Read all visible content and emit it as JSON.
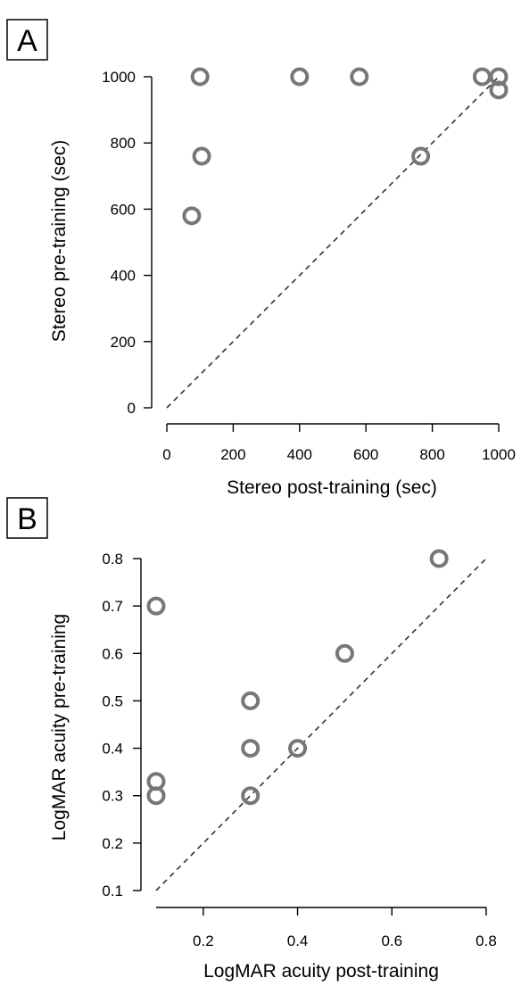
{
  "chart_data": [
    {
      "type": "scatter",
      "panel": "A",
      "xlabel": "Stereo post-training (sec)",
      "ylabel": "Stereo pre-training (sec)",
      "xlim": [
        0,
        1000
      ],
      "ylim": [
        0,
        1000
      ],
      "xticks": [
        "0",
        "200",
        "400",
        "600",
        "800",
        "1000"
      ],
      "yticks": [
        "0",
        "200",
        "400",
        "600",
        "800",
        "1000"
      ],
      "reference_line": "identity (y = x), dashed",
      "marker_color": "#777777",
      "points": [
        {
          "x": 100,
          "y": 1000
        },
        {
          "x": 400,
          "y": 1000
        },
        {
          "x": 580,
          "y": 1000
        },
        {
          "x": 950,
          "y": 1000
        },
        {
          "x": 1000,
          "y": 1000
        },
        {
          "x": 1000,
          "y": 960
        },
        {
          "x": 105,
          "y": 760
        },
        {
          "x": 765,
          "y": 760
        },
        {
          "x": 75,
          "y": 580
        }
      ]
    },
    {
      "type": "scatter",
      "panel": "B",
      "xlabel": "LogMAR acuity post-training",
      "ylabel": "LogMAR acuity pre-training",
      "xlim": [
        0.1,
        0.8
      ],
      "ylim": [
        0.1,
        0.8
      ],
      "xticks": [
        "0.2",
        "0.4",
        "0.6",
        "0.8"
      ],
      "yticks": [
        "0.1",
        "0.2",
        "0.3",
        "0.4",
        "0.5",
        "0.6",
        "0.7",
        "0.8"
      ],
      "reference_line": "identity (y = x), dashed",
      "marker_color": "#777777",
      "points": [
        {
          "x": 0.7,
          "y": 0.8
        },
        {
          "x": 0.1,
          "y": 0.7
        },
        {
          "x": 0.5,
          "y": 0.6
        },
        {
          "x": 0.3,
          "y": 0.5
        },
        {
          "x": 0.3,
          "y": 0.4
        },
        {
          "x": 0.4,
          "y": 0.4
        },
        {
          "x": 0.1,
          "y": 0.33
        },
        {
          "x": 0.1,
          "y": 0.3
        },
        {
          "x": 0.3,
          "y": 0.3
        }
      ]
    }
  ]
}
